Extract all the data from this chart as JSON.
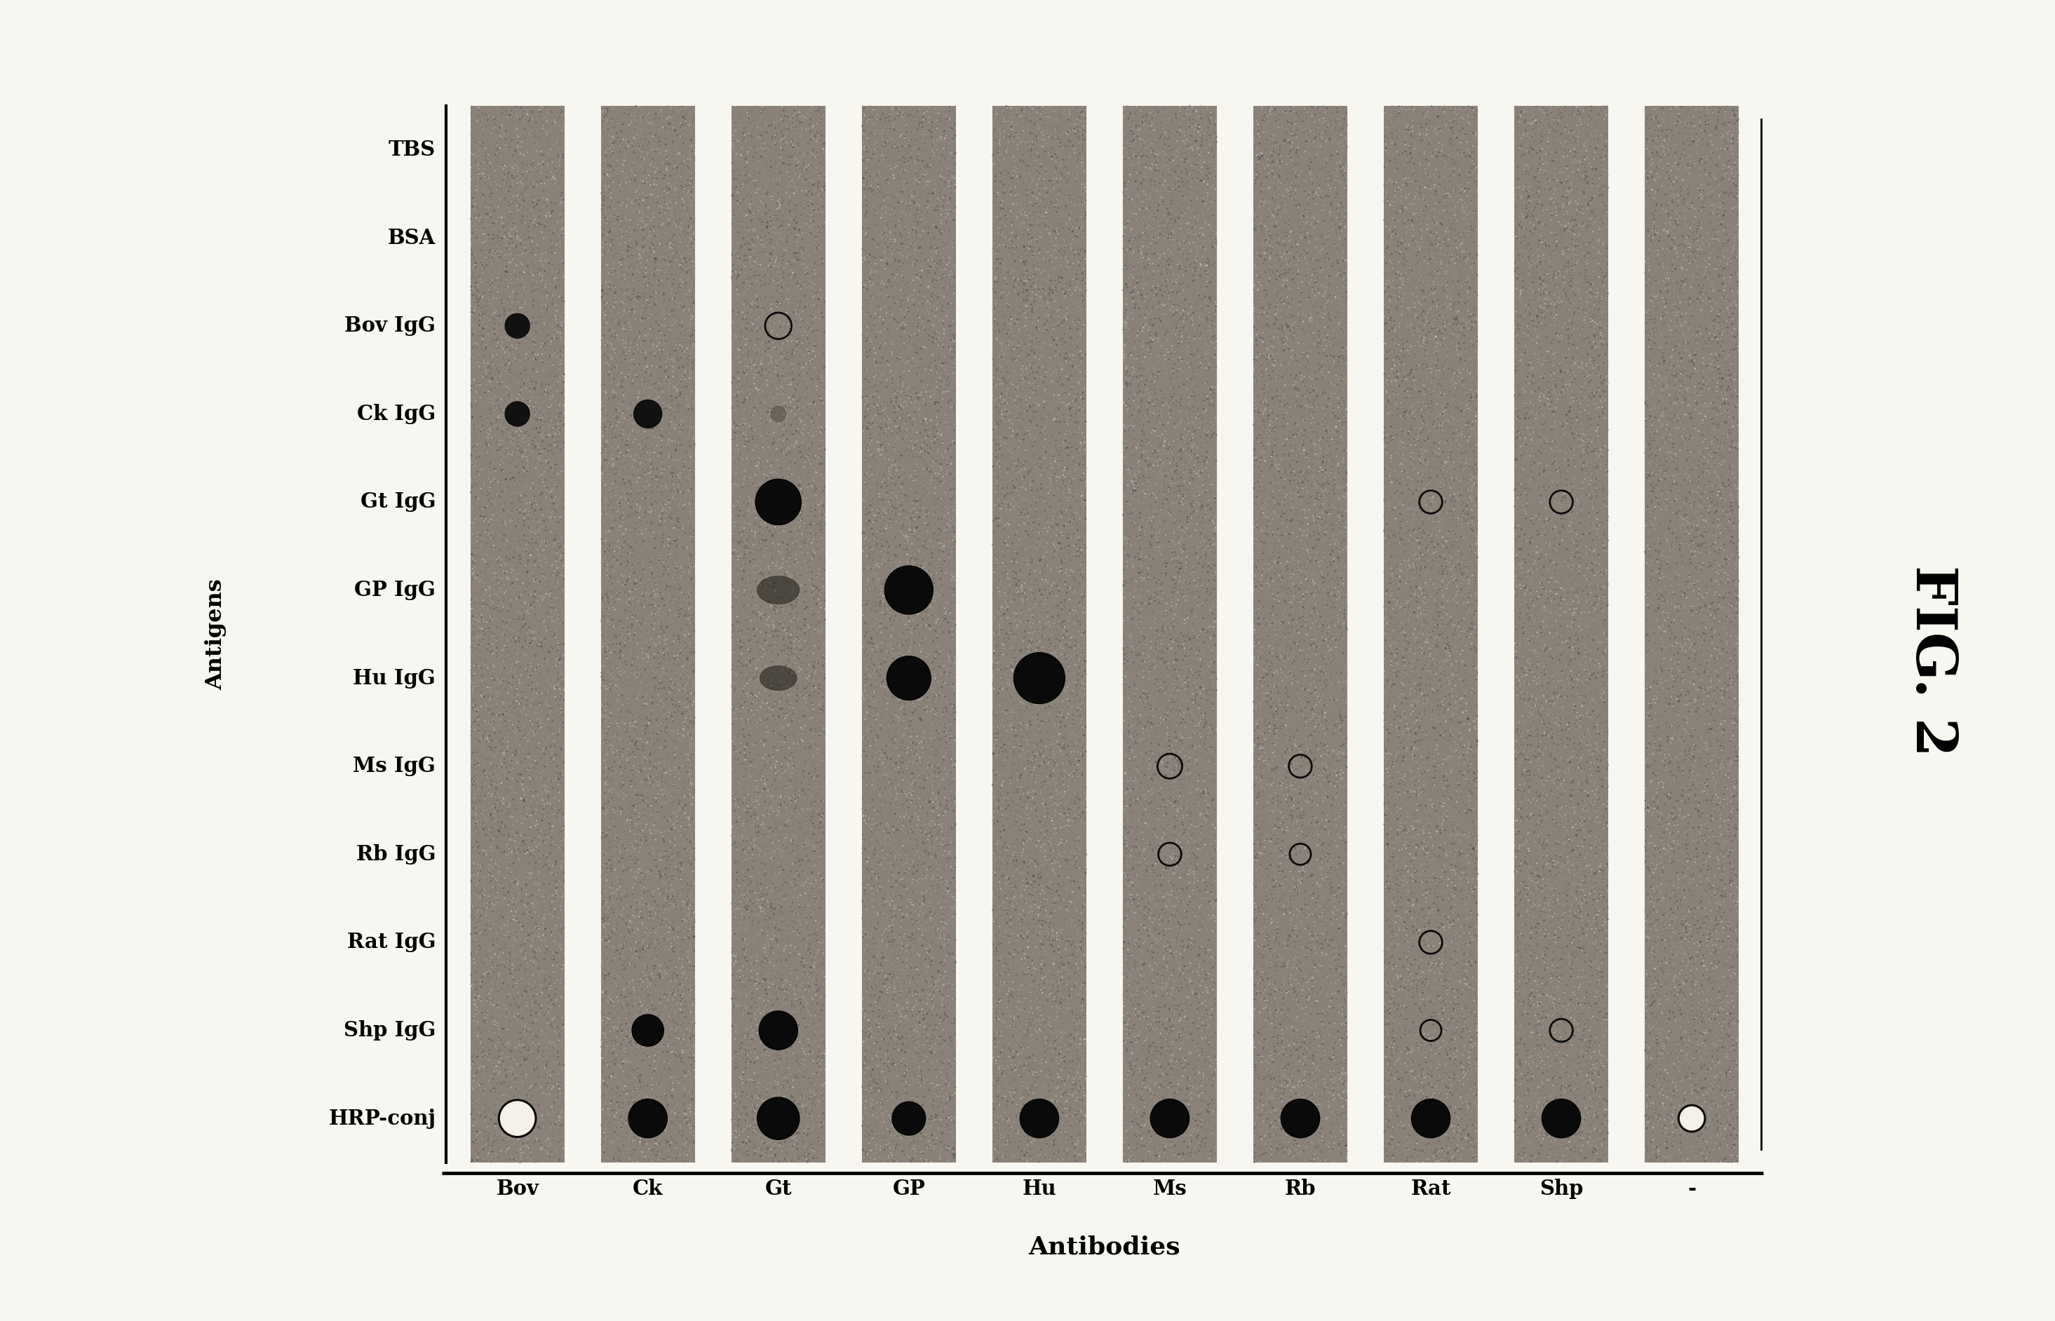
{
  "antigens": [
    "TBS",
    "BSA",
    "Bov IgG",
    "Ck IgG",
    "Gt IgG",
    "GP IgG",
    "Hu IgG",
    "Ms IgG",
    "Rb IgG",
    "Rat IgG",
    "Shp IgG",
    "HRP-conj"
  ],
  "antibodies": [
    "Bov",
    "Ck",
    "Gt",
    "GP",
    "Hu",
    "Ms",
    "Rb",
    "Rat",
    "Shp",
    "-"
  ],
  "figure_label": "FIG. 2",
  "x_axis_label": "Antibodies",
  "y_axis_label": "Antigens",
  "bg_color": "#f8f6f0",
  "strip_color": "#888070",
  "gap_color": "#f8f6f0",
  "dots": [
    {
      "col": 0,
      "row": 2,
      "size": 0.28,
      "type": "dark_half",
      "note": "Bov/BovIgG - partial"
    },
    {
      "col": 0,
      "row": 3,
      "size": 0.28,
      "type": "dark_half",
      "note": "Bov/CkIgG"
    },
    {
      "col": 0,
      "row": 11,
      "size": 0.42,
      "type": "dark_open",
      "note": "Bov/HRP ring"
    },
    {
      "col": 1,
      "row": 3,
      "size": 0.32,
      "type": "dark_half",
      "note": "Ck/CkIgG"
    },
    {
      "col": 1,
      "row": 10,
      "size": 0.36,
      "type": "dark_solid",
      "note": "Ck/ShpIgG"
    },
    {
      "col": 1,
      "row": 11,
      "size": 0.44,
      "type": "dark_solid",
      "note": "Ck/HRP"
    },
    {
      "col": 2,
      "row": 0,
      "size": 0.0,
      "type": "smear_blot",
      "note": "Gt/TBS smear top"
    },
    {
      "col": 2,
      "row": 1,
      "size": 0.0,
      "type": "drip",
      "note": "Gt/BSA drip down"
    },
    {
      "col": 2,
      "row": 2,
      "size": 0.3,
      "type": "open_ring",
      "note": "Gt/BovIgG open"
    },
    {
      "col": 2,
      "row": 3,
      "size": 0.22,
      "type": "faint_dot",
      "note": "Gt/CkIgG faint"
    },
    {
      "col": 2,
      "row": 4,
      "size": 0.52,
      "type": "dark_solid",
      "note": "Gt/GtIgG large"
    },
    {
      "col": 2,
      "row": 5,
      "size": 0.4,
      "type": "smear_blob",
      "note": "Gt/GPIgG blob"
    },
    {
      "col": 2,
      "row": 6,
      "size": 0.35,
      "type": "smear_blob",
      "note": "Gt/HuIgG blob"
    },
    {
      "col": 2,
      "row": 10,
      "size": 0.44,
      "type": "dark_solid",
      "note": "Gt/ShpIgG"
    },
    {
      "col": 2,
      "row": 11,
      "size": 0.48,
      "type": "dark_solid",
      "note": "Gt/HRP"
    },
    {
      "col": 3,
      "row": 5,
      "size": 0.55,
      "type": "dark_solid",
      "note": "GP/GPIgG large"
    },
    {
      "col": 3,
      "row": 6,
      "size": 0.5,
      "type": "dark_solid",
      "note": "GP/HuIgG large"
    },
    {
      "col": 3,
      "row": 11,
      "size": 0.38,
      "type": "dark_solid",
      "note": "GP/HRP"
    },
    {
      "col": 4,
      "row": 6,
      "size": 0.58,
      "type": "dark_solid",
      "note": "Hu/HuIgG large"
    },
    {
      "col": 4,
      "row": 11,
      "size": 0.44,
      "type": "dark_solid",
      "note": "Hu/HRP"
    },
    {
      "col": 5,
      "row": 7,
      "size": 0.28,
      "type": "open_ring",
      "note": "Ms/MsIgG open"
    },
    {
      "col": 5,
      "row": 8,
      "size": 0.26,
      "type": "open_ring",
      "note": "Ms/RbIgG open"
    },
    {
      "col": 5,
      "row": 11,
      "size": 0.44,
      "type": "dark_solid",
      "note": "Ms/HRP"
    },
    {
      "col": 6,
      "row": 7,
      "size": 0.26,
      "type": "open_ring",
      "note": "Rb/MsIgG open"
    },
    {
      "col": 6,
      "row": 8,
      "size": 0.24,
      "type": "open_ring",
      "note": "Rb/RbIgG open"
    },
    {
      "col": 6,
      "row": 11,
      "size": 0.44,
      "type": "dark_solid",
      "note": "Rb/HRP"
    },
    {
      "col": 7,
      "row": 4,
      "size": 0.26,
      "type": "open_ring",
      "note": "Rat/GtIgG open"
    },
    {
      "col": 7,
      "row": 9,
      "size": 0.26,
      "type": "open_ring",
      "note": "Rat/RatIgG open"
    },
    {
      "col": 7,
      "row": 10,
      "size": 0.24,
      "type": "open_ring",
      "note": "Rat/ShpIgG open"
    },
    {
      "col": 7,
      "row": 11,
      "size": 0.44,
      "type": "dark_solid",
      "note": "Rat/HRP"
    },
    {
      "col": 8,
      "row": 4,
      "size": 0.26,
      "type": "open_ring",
      "note": "Shp/GtIgG open"
    },
    {
      "col": 8,
      "row": 10,
      "size": 0.26,
      "type": "open_ring",
      "note": "Shp/ShpIgG open"
    },
    {
      "col": 8,
      "row": 11,
      "size": 0.44,
      "type": "dark_solid",
      "note": "Shp/HRP"
    },
    {
      "col": 9,
      "row": 11,
      "size": 0.3,
      "type": "dark_open",
      "note": "-/HRP small open"
    }
  ]
}
